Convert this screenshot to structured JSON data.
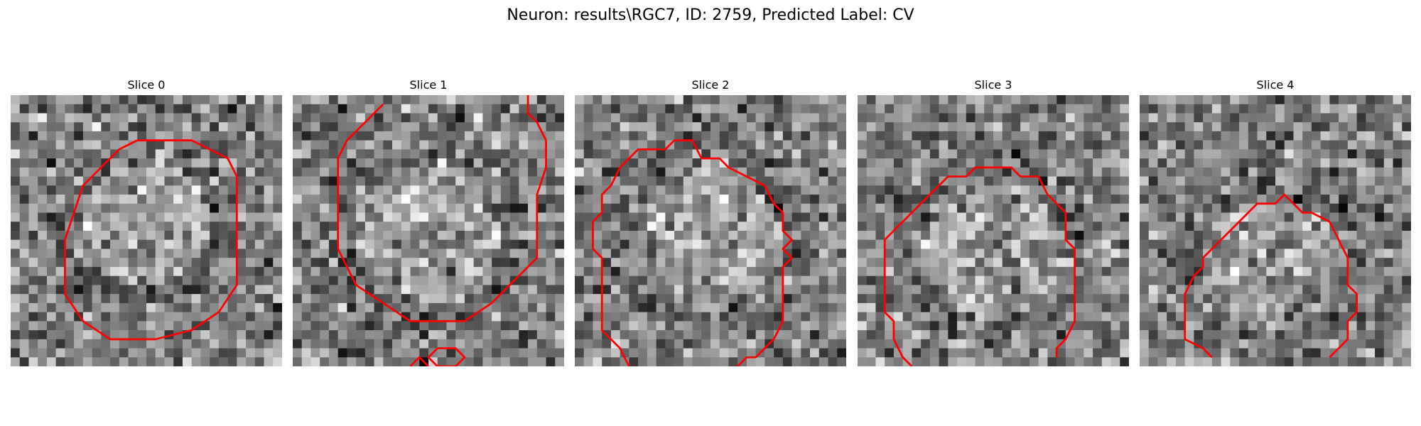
{
  "title": "Neuron: results\\RGC7, ID: 2759, Predicted Label: CV",
  "colors": {
    "contour": "#ff0000",
    "background": "#ffffff"
  },
  "slices": [
    {
      "label": "Slice 0"
    },
    {
      "label": "Slice 1"
    },
    {
      "label": "Slice 2"
    },
    {
      "label": "Slice 3"
    },
    {
      "label": "Slice 4"
    }
  ]
}
